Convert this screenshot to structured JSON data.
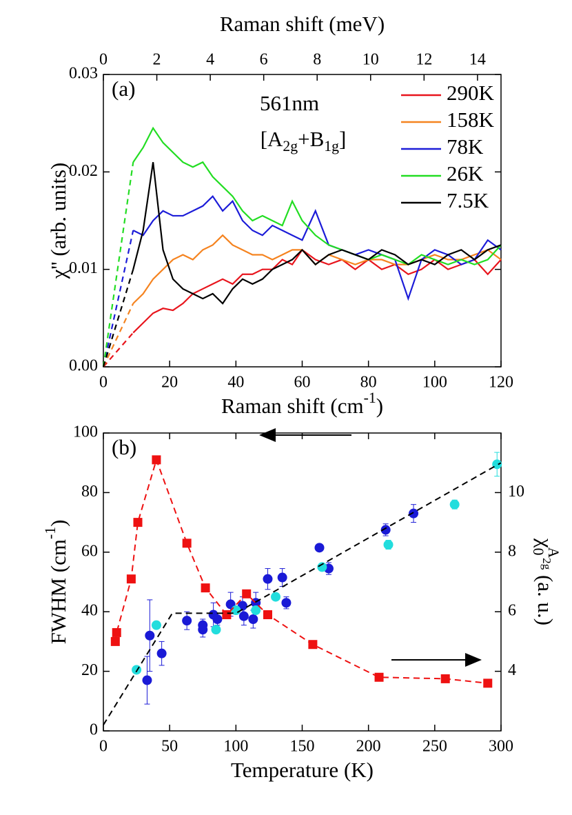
{
  "chart_data": [
    {
      "type": "line",
      "panel_label": "(a)",
      "annotation": "561nm",
      "annotation2": [
        "[A",
        "2g",
        "+B",
        "1g",
        "]"
      ],
      "xlabel": [
        "Raman shift (cm",
        "-1",
        ")"
      ],
      "x2label": "Raman shift (meV)",
      "ylabel": "χ'' (arb. units)",
      "xlim": [
        0,
        120
      ],
      "xticks": [
        0,
        20,
        40,
        60,
        80,
        100,
        120
      ],
      "x2lim": [
        0,
        14.88
      ],
      "x2ticks": [
        0,
        2,
        4,
        6,
        8,
        10,
        12,
        14
      ],
      "ylim": [
        0,
        0.03
      ],
      "yticks": [
        {
          "value": 0,
          "label": "0.00"
        },
        0.01,
        0.02,
        0.03
      ],
      "legend": "upper right",
      "x": [
        0,
        9,
        12,
        15,
        18,
        21,
        24,
        27,
        30,
        33,
        36,
        39,
        42,
        45,
        48,
        51,
        54,
        57,
        60,
        64,
        68,
        72,
        76,
        80,
        84,
        88,
        92,
        96,
        100,
        104,
        108,
        112,
        116,
        120
      ],
      "series": [
        {
          "name": "290K",
          "color": "#e8141c",
          "values": [
            0,
            0.0035,
            0.0045,
            0.0055,
            0.006,
            0.0058,
            0.0065,
            0.0075,
            0.008,
            0.0085,
            0.009,
            0.0085,
            0.0095,
            0.0095,
            0.01,
            0.01,
            0.011,
            0.0105,
            0.012,
            0.011,
            0.0105,
            0.011,
            0.01,
            0.011,
            0.01,
            0.0105,
            0.0095,
            0.01,
            0.011,
            0.01,
            0.0105,
            0.011,
            0.0095,
            0.011
          ]
        },
        {
          "name": "158K",
          "color": "#f5831f",
          "values": [
            0,
            0.0065,
            0.0075,
            0.009,
            0.01,
            0.011,
            0.0115,
            0.011,
            0.012,
            0.0125,
            0.0135,
            0.0125,
            0.012,
            0.0115,
            0.0115,
            0.011,
            0.0115,
            0.012,
            0.012,
            0.0105,
            0.0115,
            0.011,
            0.0105,
            0.011,
            0.011,
            0.0105,
            0.0105,
            0.011,
            0.0115,
            0.011,
            0.011,
            0.0115,
            0.012,
            0.011
          ]
        },
        {
          "name": "78K",
          "color": "#1c1cd8",
          "values": [
            0,
            0.014,
            0.0135,
            0.015,
            0.016,
            0.0155,
            0.0155,
            0.016,
            0.0165,
            0.0175,
            0.016,
            0.017,
            0.015,
            0.014,
            0.0135,
            0.0145,
            0.014,
            0.0135,
            0.013,
            0.016,
            0.0125,
            0.012,
            0.0115,
            0.012,
            0.0115,
            0.011,
            0.007,
            0.011,
            0.012,
            0.0115,
            0.0105,
            0.011,
            0.013,
            0.012
          ]
        },
        {
          "name": "26K",
          "color": "#22dd22",
          "values": [
            0,
            0.021,
            0.0225,
            0.0245,
            0.023,
            0.022,
            0.021,
            0.0205,
            0.021,
            0.0195,
            0.0185,
            0.0175,
            0.016,
            0.015,
            0.0155,
            0.015,
            0.0145,
            0.017,
            0.015,
            0.0135,
            0.0125,
            0.012,
            0.0115,
            0.011,
            0.0115,
            0.011,
            0.0105,
            0.0115,
            0.011,
            0.0105,
            0.011,
            0.0105,
            0.011,
            0.0125
          ]
        },
        {
          "name": "7.5K",
          "color": "#000000",
          "values": [
            0,
            0.01,
            0.014,
            0.021,
            0.012,
            0.009,
            0.008,
            0.0075,
            0.007,
            0.0075,
            0.0065,
            0.008,
            0.009,
            0.0085,
            0.009,
            0.01,
            0.0105,
            0.011,
            0.012,
            0.0105,
            0.0115,
            0.012,
            0.0115,
            0.011,
            0.012,
            0.0115,
            0.0105,
            0.011,
            0.0105,
            0.0115,
            0.012,
            0.011,
            0.012,
            0.0125
          ]
        }
      ]
    },
    {
      "type": "scatter",
      "panel_label": "(b)",
      "xlabel": "Temperature (K)",
      "ylabel": [
        "FWHM (cm",
        "-1",
        ")"
      ],
      "y2label": [
        "χ",
        "0",
        "A",
        "2g",
        " (a. u.)"
      ],
      "xlim": [
        0,
        300
      ],
      "xticks": [
        0,
        50,
        100,
        150,
        200,
        250,
        300
      ],
      "ylim": [
        0,
        100
      ],
      "yticks": [
        0,
        20,
        40,
        60,
        80,
        100
      ],
      "y2lim": [
        2,
        12
      ],
      "y2ticks": [
        4,
        6,
        8,
        10
      ],
      "series": [
        {
          "color": "#1a1ad6",
          "marker": "circle",
          "x": [
            33,
            35,
            44,
            63,
            75,
            75,
            83,
            86,
            96,
            105,
            106,
            113,
            115,
            124,
            135,
            138,
            163,
            170,
            213,
            234
          ],
          "values": [
            17,
            32,
            26,
            37,
            34,
            35.5,
            39,
            37.5,
            42.5,
            42,
            38.5,
            37.5,
            43,
            51,
            51.5,
            43,
            61.5,
            54.5,
            67.5,
            73
          ],
          "errors": [
            8,
            12,
            4,
            3,
            2.5,
            2,
            4,
            2,
            4,
            3,
            3,
            3,
            3.5,
            3.5,
            3,
            2,
            1,
            2,
            2,
            3
          ]
        },
        {
          "color": "#22dddd",
          "marker": "circle",
          "x": [
            25,
            40,
            85,
            100,
            115,
            130,
            165,
            215,
            265,
            297
          ],
          "values": [
            20.5,
            35.5,
            34,
            40.5,
            40.5,
            45,
            55,
            62.5,
            76,
            89.5
          ],
          "errors": [
            1,
            1,
            1,
            1,
            1,
            1,
            1,
            1.5,
            1.5,
            4
          ]
        },
        {
          "color": "#ee1111",
          "marker": "square",
          "line": "dashed",
          "axis": "y2",
          "x": [
            9,
            10,
            21,
            26,
            40,
            63,
            77,
            93,
            108,
            124,
            158,
            208,
            258,
            290
          ],
          "values": [
            5.0,
            5.3,
            7.1,
            9.0,
            11.1,
            8.3,
            6.8,
            5.9,
            6.6,
            5.9,
            4.9,
            3.8,
            3.75,
            3.6
          ]
        },
        {
          "color": "#000000",
          "marker": "none",
          "line": "dashed",
          "x": [
            0,
            52,
            100,
            300
          ],
          "values": [
            2,
            39.5,
            39.5,
            90
          ]
        }
      ]
    }
  ]
}
